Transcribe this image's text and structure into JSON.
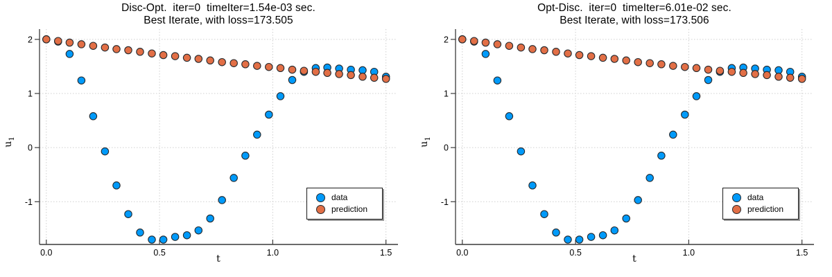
{
  "page": {
    "background": "#ffffff"
  },
  "style": {
    "grid_color": "#cfcfcf",
    "axis_color": "#3a3a3a",
    "marker_stroke": "#24292e",
    "text_color": "#000000",
    "marker_radius": 5.2
  },
  "chart_data": [
    {
      "type": "scatter",
      "title_line1": "Disc-Opt.  iter=0  timeIter=1.54e-03 sec.",
      "title_line2": "Best Iterate, with loss=173.505",
      "xlabel": "t",
      "ylabel": {
        "base": "u",
        "sub": "1"
      },
      "xlim": [
        -0.03,
        1.55
      ],
      "ylim": [
        -1.79,
        2.19
      ],
      "xticks": [
        0.0,
        0.5,
        1.0,
        1.5
      ],
      "xtick_labels": [
        "0.0",
        "0.5",
        "1.0",
        "1.5"
      ],
      "yticks": [
        -1,
        0,
        1,
        2
      ],
      "ytick_labels": [
        "-1",
        "0",
        "1",
        "2"
      ],
      "grid": true,
      "legend_position": "bottom-right",
      "series": [
        {
          "name": "data",
          "color": "#009AFA",
          "marker": "circle",
          "x": [
            0,
            0.052,
            0.103,
            0.155,
            0.207,
            0.259,
            0.31,
            0.362,
            0.414,
            0.466,
            0.517,
            0.569,
            0.621,
            0.672,
            0.724,
            0.776,
            0.828,
            0.879,
            0.931,
            0.983,
            1.034,
            1.086,
            1.138,
            1.19,
            1.241,
            1.293,
            1.345,
            1.397,
            1.448,
            1.5
          ],
          "y": [
            2.0,
            1.96,
            1.73,
            1.24,
            0.58,
            -0.07,
            -0.7,
            -1.23,
            -1.57,
            -1.7,
            -1.7,
            -1.65,
            -1.62,
            -1.53,
            -1.31,
            -0.97,
            -0.56,
            -0.15,
            0.24,
            0.61,
            0.95,
            1.25,
            1.4,
            1.47,
            1.48,
            1.46,
            1.44,
            1.43,
            1.4,
            1.31
          ]
        },
        {
          "name": "prediction",
          "color": "#E26F46",
          "marker": "circle",
          "x": [
            0,
            0.052,
            0.103,
            0.155,
            0.207,
            0.259,
            0.31,
            0.362,
            0.414,
            0.466,
            0.517,
            0.569,
            0.621,
            0.672,
            0.724,
            0.776,
            0.828,
            0.879,
            0.931,
            0.983,
            1.034,
            1.086,
            1.138,
            1.19,
            1.241,
            1.293,
            1.345,
            1.397,
            1.448,
            1.5
          ],
          "y": [
            2.0,
            1.97,
            1.94,
            1.91,
            1.88,
            1.85,
            1.82,
            1.8,
            1.77,
            1.74,
            1.71,
            1.69,
            1.66,
            1.64,
            1.61,
            1.58,
            1.56,
            1.54,
            1.51,
            1.49,
            1.47,
            1.44,
            1.42,
            1.4,
            1.38,
            1.36,
            1.34,
            1.31,
            1.29,
            1.27
          ]
        }
      ]
    },
    {
      "type": "scatter",
      "title_line1": "Opt-Disc.  iter=0  timeIter=6.01e-02 sec.",
      "title_line2": "Best Iterate, with loss=173.506",
      "xlabel": "t",
      "ylabel": {
        "base": "u",
        "sub": "1"
      },
      "xlim": [
        -0.03,
        1.55
      ],
      "ylim": [
        -1.79,
        2.19
      ],
      "xticks": [
        0.0,
        0.5,
        1.0,
        1.5
      ],
      "xtick_labels": [
        "0.0",
        "0.5",
        "1.0",
        "1.5"
      ],
      "yticks": [
        -1,
        0,
        1,
        2
      ],
      "ytick_labels": [
        "-1",
        "0",
        "1",
        "2"
      ],
      "grid": true,
      "legend_position": "bottom-right",
      "series": [
        {
          "name": "data",
          "color": "#009AFA",
          "marker": "circle",
          "x": [
            0,
            0.052,
            0.103,
            0.155,
            0.207,
            0.259,
            0.31,
            0.362,
            0.414,
            0.466,
            0.517,
            0.569,
            0.621,
            0.672,
            0.724,
            0.776,
            0.828,
            0.879,
            0.931,
            0.983,
            1.034,
            1.086,
            1.138,
            1.19,
            1.241,
            1.293,
            1.345,
            1.397,
            1.448,
            1.5
          ],
          "y": [
            2.0,
            1.96,
            1.73,
            1.24,
            0.58,
            -0.07,
            -0.7,
            -1.23,
            -1.57,
            -1.7,
            -1.7,
            -1.65,
            -1.62,
            -1.53,
            -1.31,
            -0.97,
            -0.56,
            -0.15,
            0.24,
            0.61,
            0.95,
            1.25,
            1.4,
            1.47,
            1.48,
            1.46,
            1.44,
            1.43,
            1.4,
            1.31
          ]
        },
        {
          "name": "prediction",
          "color": "#E26F46",
          "marker": "circle",
          "x": [
            0,
            0.052,
            0.103,
            0.155,
            0.207,
            0.259,
            0.31,
            0.362,
            0.414,
            0.466,
            0.517,
            0.569,
            0.621,
            0.672,
            0.724,
            0.776,
            0.828,
            0.879,
            0.931,
            0.983,
            1.034,
            1.086,
            1.138,
            1.19,
            1.241,
            1.293,
            1.345,
            1.397,
            1.448,
            1.5
          ],
          "y": [
            2.0,
            1.97,
            1.94,
            1.91,
            1.88,
            1.85,
            1.82,
            1.8,
            1.77,
            1.74,
            1.71,
            1.69,
            1.66,
            1.64,
            1.61,
            1.58,
            1.56,
            1.54,
            1.51,
            1.49,
            1.47,
            1.44,
            1.42,
            1.4,
            1.38,
            1.36,
            1.34,
            1.31,
            1.29,
            1.27
          ]
        }
      ]
    }
  ]
}
